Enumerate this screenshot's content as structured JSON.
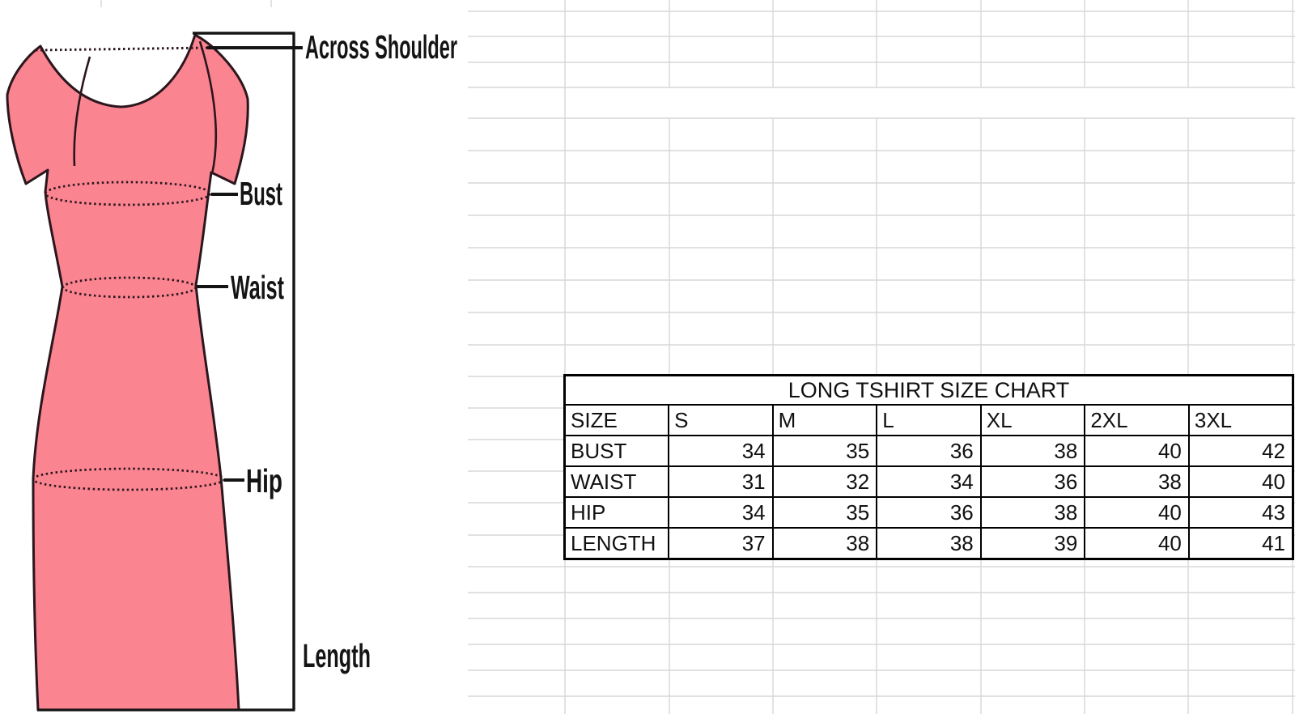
{
  "sheet": {
    "background": "#ffffff",
    "gridline_color": "#d7d7d7"
  },
  "diagram": {
    "labels": {
      "across_shoulder": "Across Shoulder",
      "bust": "Bust",
      "waist": "Waist",
      "hip": "Hip",
      "length": "Length"
    },
    "colors": {
      "dress_fill": "#fa8490",
      "dress_outline": "#2b161d",
      "annotation_ink": "#141414"
    }
  },
  "size_chart": {
    "title": "LONG TSHIRT SIZE CHART",
    "border_color": "#000000",
    "columns": [
      "SIZE",
      "S",
      "M",
      "L",
      "XL",
      "2XL",
      "3XL"
    ],
    "rows": [
      {
        "label": "BUST",
        "values": [
          34,
          35,
          36,
          38,
          40,
          42
        ]
      },
      {
        "label": "WAIST",
        "values": [
          31,
          32,
          34,
          36,
          38,
          40
        ]
      },
      {
        "label": "HIP",
        "values": [
          34,
          35,
          36,
          38,
          40,
          43
        ]
      },
      {
        "label": "LENGTH",
        "values": [
          37,
          38,
          38,
          39,
          40,
          41
        ]
      }
    ]
  },
  "chart_data": {
    "type": "table",
    "title": "LONG TSHIRT SIZE CHART",
    "columns": [
      "SIZE",
      "S",
      "M",
      "L",
      "XL",
      "2XL",
      "3XL"
    ],
    "rows": [
      [
        "BUST",
        34,
        35,
        36,
        38,
        40,
        42
      ],
      [
        "WAIST",
        31,
        32,
        34,
        36,
        38,
        40
      ],
      [
        "HIP",
        34,
        35,
        36,
        38,
        40,
        43
      ],
      [
        "LENGTH",
        37,
        38,
        38,
        39,
        40,
        41
      ]
    ]
  }
}
